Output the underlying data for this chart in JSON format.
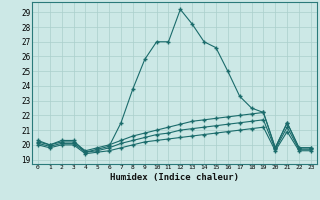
{
  "xlabel": "Humidex (Indice chaleur)",
  "bg_color": "#cce8e6",
  "line_color": "#1a6b6b",
  "grid_color": "#aacfcc",
  "x_ticks": [
    0,
    1,
    2,
    3,
    4,
    5,
    6,
    7,
    8,
    9,
    10,
    11,
    12,
    13,
    14,
    15,
    16,
    17,
    18,
    19,
    20,
    21,
    22,
    23
  ],
  "y_ticks": [
    19,
    20,
    21,
    22,
    23,
    24,
    25,
    26,
    27,
    28,
    29
  ],
  "ylim": [
    18.7,
    29.7
  ],
  "xlim": [
    -0.5,
    23.5
  ],
  "series": [
    {
      "x": [
        0,
        1,
        2,
        3,
        4,
        5,
        6,
        7,
        8,
        9,
        10,
        11,
        12,
        13,
        14,
        15,
        16,
        17,
        18,
        19,
        20,
        21,
        22,
        23
      ],
      "y": [
        20.3,
        20.0,
        20.3,
        20.3,
        19.5,
        19.7,
        19.9,
        21.5,
        23.8,
        25.8,
        27.0,
        27.0,
        29.2,
        28.2,
        27.0,
        26.6,
        25.0,
        23.3,
        22.5,
        22.2,
        19.8,
        21.5,
        19.8,
        19.8
      ]
    },
    {
      "x": [
        0,
        1,
        2,
        3,
        4,
        5,
        6,
        7,
        8,
        9,
        10,
        11,
        12,
        13,
        14,
        15,
        16,
        17,
        18,
        19,
        20,
        21,
        22,
        23
      ],
      "y": [
        20.2,
        20.0,
        20.2,
        20.2,
        19.6,
        19.8,
        20.0,
        20.3,
        20.6,
        20.8,
        21.0,
        21.2,
        21.4,
        21.6,
        21.7,
        21.8,
        21.9,
        22.0,
        22.1,
        22.2,
        19.8,
        21.5,
        19.8,
        19.8
      ]
    },
    {
      "x": [
        0,
        1,
        2,
        3,
        4,
        5,
        6,
        7,
        8,
        9,
        10,
        11,
        12,
        13,
        14,
        15,
        16,
        17,
        18,
        19,
        20,
        21,
        22,
        23
      ],
      "y": [
        20.1,
        19.9,
        20.1,
        20.1,
        19.5,
        19.6,
        19.8,
        20.1,
        20.3,
        20.5,
        20.7,
        20.8,
        21.0,
        21.1,
        21.2,
        21.3,
        21.4,
        21.5,
        21.6,
        21.7,
        19.7,
        21.2,
        19.7,
        19.7
      ]
    },
    {
      "x": [
        0,
        1,
        2,
        3,
        4,
        5,
        6,
        7,
        8,
        9,
        10,
        11,
        12,
        13,
        14,
        15,
        16,
        17,
        18,
        19,
        20,
        21,
        22,
        23
      ],
      "y": [
        20.0,
        19.8,
        20.0,
        20.0,
        19.4,
        19.5,
        19.6,
        19.8,
        20.0,
        20.2,
        20.3,
        20.4,
        20.5,
        20.6,
        20.7,
        20.8,
        20.9,
        21.0,
        21.1,
        21.2,
        19.6,
        20.9,
        19.6,
        19.6
      ]
    }
  ]
}
